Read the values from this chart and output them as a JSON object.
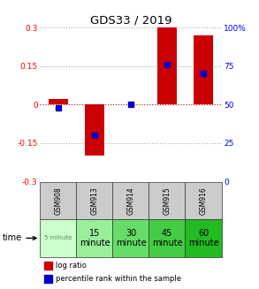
{
  "title": "GDS33 / 2019",
  "samples": [
    "GSM908",
    "GSM913",
    "GSM914",
    "GSM915",
    "GSM916"
  ],
  "log_ratios": [
    0.02,
    -0.2,
    0.0,
    0.3,
    0.27
  ],
  "percentile_ranks": [
    48,
    30,
    50,
    76,
    70
  ],
  "ylim": [
    -0.3,
    0.3
  ],
  "y_left_ticks": [
    0.3,
    0.15,
    0.0,
    -0.15,
    -0.3
  ],
  "y_right_ticks": [
    100,
    75,
    50,
    25,
    0
  ],
  "bar_color": "#cc0000",
  "pct_color": "#0000cc",
  "grid_color": "#aaaaaa",
  "zero_line_color": "#cc0000",
  "bg_color": "#ffffff",
  "cell_bg_gray": "#cccccc",
  "time_bg_colors": [
    "#ccffcc",
    "#99ee99",
    "#66dd66",
    "#44cc44",
    "#22bb22"
  ],
  "time_labels_short": [
    "5 minute",
    "15\nminute",
    "30\nminute",
    "45\nminute",
    "60\nminute"
  ]
}
